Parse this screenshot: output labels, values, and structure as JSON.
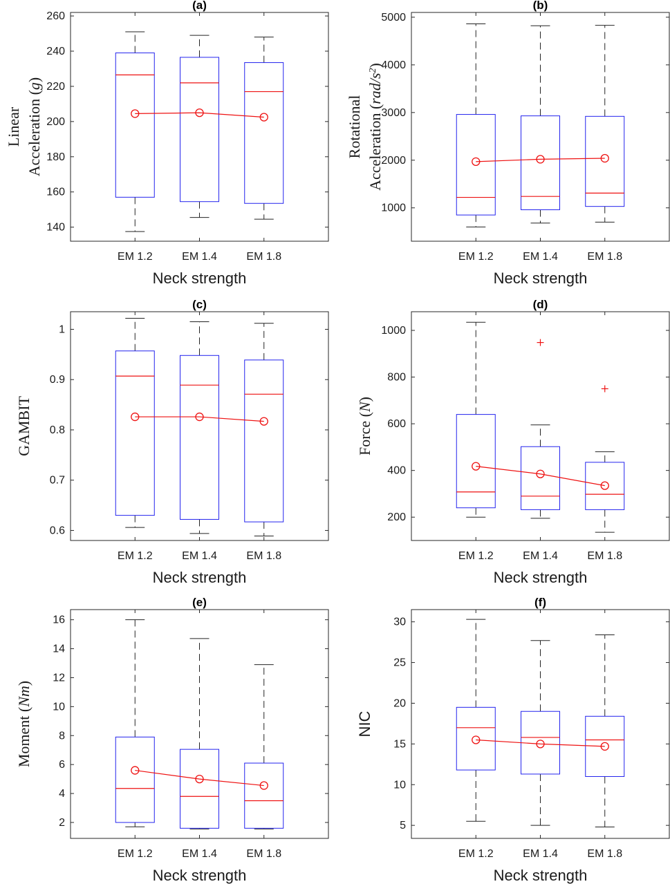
{
  "figure": {
    "xlabel": "Neck strength",
    "categories": [
      "EM 1.2",
      "EM 1.4",
      "EM 1.8"
    ]
  },
  "chart_data": [
    {
      "id": "a",
      "type": "box",
      "title": "(a)",
      "ylabel_lines": [
        {
          "parts": [
            {
              "text": "Linear",
              "italic": false
            }
          ]
        },
        {
          "parts": [
            {
              "text": "Acceleration (",
              "italic": false
            },
            {
              "text": "g",
              "italic": true
            },
            {
              "text": ")",
              "italic": false
            }
          ]
        }
      ],
      "ylim": [
        132,
        262
      ],
      "yticks": [
        140,
        160,
        180,
        200,
        220,
        240,
        260
      ],
      "boxes": [
        {
          "category": "EM 1.2",
          "whisker_low": 137.5,
          "q1": 157,
          "median": 226.5,
          "q3": 239,
          "whisker_high": 251,
          "mean": 204.5,
          "outliers": []
        },
        {
          "category": "EM 1.4",
          "whisker_low": 145.5,
          "q1": 154.5,
          "median": 222,
          "q3": 236.5,
          "whisker_high": 249,
          "mean": 205,
          "outliers": []
        },
        {
          "category": "EM 1.8",
          "whisker_low": 144.5,
          "q1": 153.5,
          "median": 217,
          "q3": 233.5,
          "whisker_high": 248,
          "mean": 202.5,
          "outliers": []
        }
      ]
    },
    {
      "id": "b",
      "type": "box",
      "title": "(b)",
      "ylabel_lines": [
        {
          "parts": [
            {
              "text": "Rotational",
              "italic": false
            }
          ]
        },
        {
          "parts": [
            {
              "text": "Acceleration (",
              "italic": false
            },
            {
              "text": "rad/s",
              "italic": true
            },
            {
              "text": "2",
              "italic": true,
              "sup": true
            },
            {
              "text": ")",
              "italic": false
            }
          ]
        }
      ],
      "ylim": [
        300,
        5100
      ],
      "yticks": [
        1000,
        2000,
        3000,
        4000,
        5000
      ],
      "boxes": [
        {
          "category": "EM 1.2",
          "whisker_low": 600,
          "q1": 850,
          "median": 1220,
          "q3": 2960,
          "whisker_high": 4860,
          "mean": 1970,
          "outliers": []
        },
        {
          "category": "EM 1.4",
          "whisker_low": 680,
          "q1": 960,
          "median": 1240,
          "q3": 2930,
          "whisker_high": 4820,
          "mean": 2020,
          "outliers": []
        },
        {
          "category": "EM 1.8",
          "whisker_low": 700,
          "q1": 1030,
          "median": 1310,
          "q3": 2920,
          "whisker_high": 4830,
          "mean": 2040,
          "outliers": []
        }
      ]
    },
    {
      "id": "c",
      "type": "box",
      "title": "(c)",
      "ylabel_lines": [
        {
          "parts": [
            {
              "text": "GAMBIT",
              "italic": false
            }
          ]
        }
      ],
      "ylim": [
        0.58,
        1.035
      ],
      "yticks": [
        0.6,
        0.7,
        0.8,
        0.9,
        1.0
      ],
      "ytick_labels": [
        "0.6",
        "0.7",
        "0.8",
        "0.9",
        "1"
      ],
      "boxes": [
        {
          "category": "EM 1.2",
          "whisker_low": 0.606,
          "q1": 0.63,
          "median": 0.907,
          "q3": 0.957,
          "whisker_high": 1.022,
          "mean": 0.826,
          "outliers": []
        },
        {
          "category": "EM 1.4",
          "whisker_low": 0.594,
          "q1": 0.622,
          "median": 0.889,
          "q3": 0.948,
          "whisker_high": 1.015,
          "mean": 0.826,
          "outliers": []
        },
        {
          "category": "EM 1.8",
          "whisker_low": 0.589,
          "q1": 0.617,
          "median": 0.871,
          "q3": 0.939,
          "whisker_high": 1.012,
          "mean": 0.817,
          "outliers": []
        }
      ]
    },
    {
      "id": "d",
      "type": "box",
      "title": "(d)",
      "ylabel_lines": [
        {
          "parts": [
            {
              "text": "Force (",
              "italic": false
            },
            {
              "text": "N",
              "italic": true
            },
            {
              "text": ")",
              "italic": false
            }
          ]
        }
      ],
      "ylim": [
        100,
        1080
      ],
      "yticks": [
        200,
        400,
        600,
        800,
        1000
      ],
      "boxes": [
        {
          "category": "EM 1.2",
          "whisker_low": 200,
          "q1": 240,
          "median": 308,
          "q3": 640,
          "whisker_high": 1035,
          "mean": 418,
          "outliers": []
        },
        {
          "category": "EM 1.4",
          "whisker_low": 195,
          "q1": 232,
          "median": 290,
          "q3": 502,
          "whisker_high": 595,
          "mean": 385,
          "outliers": [
            948
          ]
        },
        {
          "category": "EM 1.8",
          "whisker_low": 135,
          "q1": 232,
          "median": 298,
          "q3": 435,
          "whisker_high": 480,
          "mean": 335,
          "outliers": [
            750
          ]
        }
      ]
    },
    {
      "id": "e",
      "type": "box",
      "title": "(e)",
      "ylabel_lines": [
        {
          "parts": [
            {
              "text": "Moment (",
              "italic": false
            },
            {
              "text": "Nm",
              "italic": true
            },
            {
              "text": ")",
              "italic": false
            }
          ]
        }
      ],
      "ylim": [
        0.9,
        16.7
      ],
      "yticks": [
        2,
        4,
        6,
        8,
        10,
        12,
        14,
        16
      ],
      "boxes": [
        {
          "category": "EM 1.2",
          "whisker_low": 1.7,
          "q1": 2.0,
          "median": 4.35,
          "q3": 7.9,
          "whisker_high": 16.0,
          "mean": 5.6,
          "outliers": []
        },
        {
          "category": "EM 1.4",
          "whisker_low": 1.55,
          "q1": 1.6,
          "median": 3.8,
          "q3": 7.05,
          "whisker_high": 14.7,
          "mean": 5.0,
          "outliers": []
        },
        {
          "category": "EM 1.8",
          "whisker_low": 1.55,
          "q1": 1.6,
          "median": 3.5,
          "q3": 6.1,
          "whisker_high": 12.9,
          "mean": 4.55,
          "outliers": []
        }
      ]
    },
    {
      "id": "f",
      "type": "box",
      "title": "(f)",
      "ylabel_lines": [
        {
          "parts": [
            {
              "text": "NIC",
              "italic": false
            }
          ]
        }
      ],
      "ylim": [
        3.4,
        31.5
      ],
      "yticks": [
        5,
        10,
        15,
        20,
        25,
        30
      ],
      "boxes": [
        {
          "category": "EM 1.2",
          "whisker_low": 5.5,
          "q1": 11.8,
          "median": 17.0,
          "q3": 19.5,
          "whisker_high": 30.3,
          "mean": 15.5,
          "outliers": []
        },
        {
          "category": "EM 1.4",
          "whisker_low": 5.0,
          "q1": 11.3,
          "median": 15.8,
          "q3": 19.0,
          "whisker_high": 27.7,
          "mean": 15.0,
          "outliers": []
        },
        {
          "category": "EM 1.8",
          "whisker_low": 4.8,
          "q1": 11.0,
          "median": 15.5,
          "q3": 18.4,
          "whisker_high": 28.4,
          "mean": 14.7,
          "outliers": []
        }
      ]
    }
  ]
}
